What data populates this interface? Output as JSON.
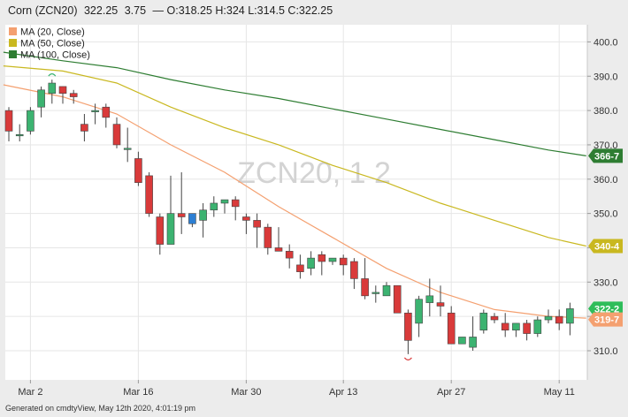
{
  "header": {
    "symbol": "Corn (ZCN20)",
    "last": "322.25",
    "change": "3.75",
    "ohlc": "— O:318.25 H:324 L:314.5 C:322.25"
  },
  "watermark": "ZCN20, 1 2",
  "footer": "Generated on cmdtyView, May 12th 2020, 4:01:19 pm",
  "chart_data": {
    "type": "candlestick",
    "title": "Corn (ZCN20) 322.25 3.75 — O:318.25 H:324 L:314.5 C:322.25",
    "ylim": [
      301.5,
      405
    ],
    "y_ticks": [
      310,
      320,
      330,
      340,
      350,
      360,
      370,
      380,
      390,
      400
    ],
    "y_tick_labels": [
      "310.0",
      "320.0",
      "330.0",
      "340.0",
      "350.0",
      "360.0",
      "370.0",
      "380.0",
      "390.0",
      "400.0"
    ],
    "x_tick_labels": [
      {
        "label": "Mar 2",
        "index": 2
      },
      {
        "label": "Mar 16",
        "index": 12
      },
      {
        "label": "Mar 30",
        "index": 22
      },
      {
        "label": "Apr 13",
        "index": 31
      },
      {
        "label": "Apr 27",
        "index": 41
      },
      {
        "label": "May 11",
        "index": 51
      }
    ],
    "grid": true,
    "legend_position": "top-left",
    "colors": {
      "up": "#3cb371",
      "down": "#d93a3a",
      "highlight": "#2d7fd3"
    },
    "candles": [
      {
        "o": 380,
        "h": 381,
        "l": 371,
        "c": 374
      },
      {
        "o": 373,
        "h": 376,
        "l": 371,
        "c": 373
      },
      {
        "o": 374,
        "h": 381,
        "l": 373,
        "c": 380
      },
      {
        "o": 381,
        "h": 387,
        "l": 378,
        "c": 386
      },
      {
        "o": 385,
        "h": 389,
        "l": 382,
        "c": 388
      },
      {
        "o": 387,
        "h": 387,
        "l": 382,
        "c": 385
      },
      {
        "o": 385,
        "h": 386,
        "l": 382,
        "c": 384
      },
      {
        "o": 376,
        "h": 379,
        "l": 371,
        "c": 374
      },
      {
        "o": 380,
        "h": 382,
        "l": 376,
        "c": 380
      },
      {
        "o": 381,
        "h": 382,
        "l": 375,
        "c": 378
      },
      {
        "o": 376,
        "h": 378,
        "l": 369,
        "c": 370
      },
      {
        "o": 369,
        "h": 375,
        "l": 365,
        "c": 369
      },
      {
        "o": 366,
        "h": 368,
        "l": 358,
        "c": 359
      },
      {
        "o": 361,
        "h": 362,
        "l": 349,
        "c": 350
      },
      {
        "o": 349,
        "h": 350,
        "l": 338,
        "c": 341
      },
      {
        "o": 341,
        "h": 361,
        "l": 341,
        "c": 350
      },
      {
        "o": 350,
        "h": 362,
        "l": 344,
        "c": 349
      },
      {
        "o": 347,
        "h": 350,
        "l": 346,
        "c": 350,
        "highlight": true
      },
      {
        "o": 348,
        "h": 353,
        "l": 343,
        "c": 351
      },
      {
        "o": 351,
        "h": 355,
        "l": 349,
        "c": 353
      },
      {
        "o": 353,
        "h": 354,
        "l": 350,
        "c": 354
      },
      {
        "o": 354,
        "h": 355,
        "l": 348,
        "c": 352
      },
      {
        "o": 349,
        "h": 350,
        "l": 344,
        "c": 348
      },
      {
        "o": 348,
        "h": 350,
        "l": 340,
        "c": 346
      },
      {
        "o": 346,
        "h": 347,
        "l": 338,
        "c": 340
      },
      {
        "o": 340,
        "h": 346,
        "l": 339,
        "c": 339
      },
      {
        "o": 339,
        "h": 341,
        "l": 334,
        "c": 337
      },
      {
        "o": 335,
        "h": 338,
        "l": 331,
        "c": 333
      },
      {
        "o": 334,
        "h": 339,
        "l": 332,
        "c": 337
      },
      {
        "o": 338,
        "h": 339,
        "l": 332,
        "c": 336
      },
      {
        "o": 336,
        "h": 337,
        "l": 335,
        "c": 337
      },
      {
        "o": 337,
        "h": 338,
        "l": 332,
        "c": 335
      },
      {
        "o": 336,
        "h": 337,
        "l": 328,
        "c": 331
      },
      {
        "o": 331,
        "h": 337,
        "l": 325,
        "c": 326
      },
      {
        "o": 327,
        "h": 329,
        "l": 324,
        "c": 327
      },
      {
        "o": 326,
        "h": 330,
        "l": 326,
        "c": 329
      },
      {
        "o": 329,
        "h": 329,
        "l": 321,
        "c": 321
      },
      {
        "o": 321,
        "h": 322,
        "l": 309,
        "c": 313
      },
      {
        "o": 318,
        "h": 326,
        "l": 314,
        "c": 325
      },
      {
        "o": 324,
        "h": 331,
        "l": 320,
        "c": 326
      },
      {
        "o": 324,
        "h": 329,
        "l": 320,
        "c": 323
      },
      {
        "o": 321,
        "h": 323,
        "l": 312,
        "c": 312
      },
      {
        "o": 312,
        "h": 314,
        "l": 312,
        "c": 314
      },
      {
        "o": 311,
        "h": 320,
        "l": 310,
        "c": 314
      },
      {
        "o": 316,
        "h": 322,
        "l": 315,
        "c": 321
      },
      {
        "o": 320,
        "h": 321,
        "l": 318,
        "c": 319
      },
      {
        "o": 318,
        "h": 321,
        "l": 314,
        "c": 316
      },
      {
        "o": 316,
        "h": 318,
        "l": 314,
        "c": 318
      },
      {
        "o": 318,
        "h": 319,
        "l": 313,
        "c": 315
      },
      {
        "o": 315,
        "h": 320,
        "l": 314,
        "c": 319
      },
      {
        "o": 319,
        "h": 322,
        "l": 318,
        "c": 320
      },
      {
        "o": 320,
        "h": 322,
        "l": 316,
        "c": 318
      },
      {
        "o": 318,
        "h": 324,
        "l": 314.5,
        "c": 322.25
      }
    ],
    "series": [
      {
        "name": "MA (20, Close)",
        "color": "#f4a070",
        "label": "319-7",
        "values": [
          [
            -0.5,
            387.5
          ],
          [
            5,
            384
          ],
          [
            10,
            379
          ],
          [
            15,
            370
          ],
          [
            20,
            362
          ],
          [
            25,
            352
          ],
          [
            30,
            343
          ],
          [
            35,
            334
          ],
          [
            40,
            327
          ],
          [
            45,
            322
          ],
          [
            50,
            320
          ],
          [
            53.5,
            319.5
          ]
        ]
      },
      {
        "name": "MA (50, Close)",
        "color": "#c9b820",
        "label": "340-4",
        "values": [
          [
            -0.5,
            393
          ],
          [
            5,
            391.5
          ],
          [
            10,
            388
          ],
          [
            15,
            381
          ],
          [
            20,
            375
          ],
          [
            25,
            370
          ],
          [
            30,
            364
          ],
          [
            35,
            359
          ],
          [
            40,
            353
          ],
          [
            45,
            348
          ],
          [
            50,
            343
          ],
          [
            53.5,
            340.5
          ]
        ]
      },
      {
        "name": "MA (100, Close)",
        "color": "#2e7d32",
        "label": "366-7",
        "values": [
          [
            -0.5,
            397
          ],
          [
            5,
            394.5
          ],
          [
            10,
            392.5
          ],
          [
            15,
            389
          ],
          [
            20,
            386
          ],
          [
            25,
            383.5
          ],
          [
            30,
            380.5
          ],
          [
            35,
            377.5
          ],
          [
            40,
            374.5
          ],
          [
            45,
            371.5
          ],
          [
            50,
            368.5
          ],
          [
            53.5,
            366.8
          ]
        ]
      }
    ],
    "last_price_label": "322-2",
    "last_price_value": 322.25,
    "last_price_color": "#2ebd5a"
  }
}
